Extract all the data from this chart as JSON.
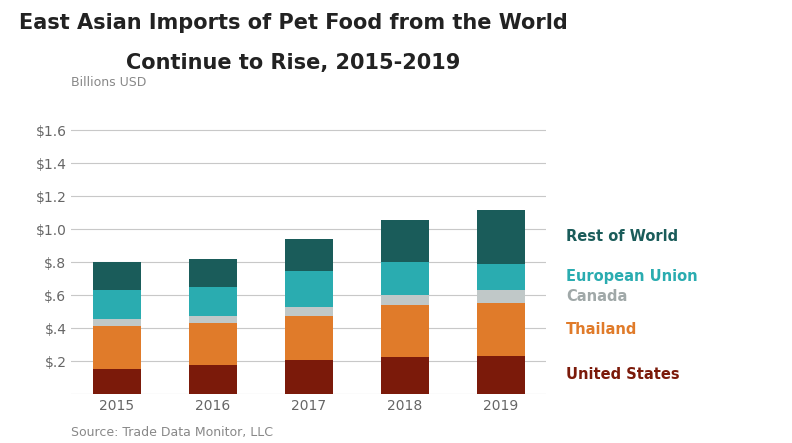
{
  "title_line1": "East Asian Imports of Pet Food from the World",
  "title_line2": "Continue to Rise, 2015-2019",
  "ylabel_top": "Billions USD",
  "source": "Source: Trade Data Monitor, LLC",
  "years": [
    "2015",
    "2016",
    "2017",
    "2018",
    "2019"
  ],
  "series": [
    {
      "name": "United States",
      "color": "#7B1A0A",
      "values": [
        0.155,
        0.175,
        0.205,
        0.225,
        0.235
      ]
    },
    {
      "name": "Thailand",
      "color": "#E07B2A",
      "values": [
        0.26,
        0.255,
        0.27,
        0.315,
        0.32
      ]
    },
    {
      "name": "Canada",
      "color": "#C0C8C8",
      "values": [
        0.04,
        0.045,
        0.055,
        0.065,
        0.08
      ]
    },
    {
      "name": "European Union",
      "color": "#2AACB0",
      "values": [
        0.175,
        0.175,
        0.22,
        0.2,
        0.155
      ]
    },
    {
      "name": "Rest of World",
      "color": "#1A5C5A",
      "values": [
        0.17,
        0.17,
        0.19,
        0.25,
        0.33
      ]
    }
  ],
  "ylim": [
    0,
    1.8
  ],
  "yticks": [
    0.0,
    0.2,
    0.4,
    0.6,
    0.8,
    1.0,
    1.2,
    1.4,
    1.6
  ],
  "ytick_labels": [
    "",
    "$.2",
    "$.4",
    "$.6",
    "$.8",
    "$1.0",
    "$1.2",
    "$1.4",
    "$1.6"
  ],
  "background_color": "#FFFFFF",
  "grid_color": "#C8C8C8",
  "title_fontsize": 15,
  "axis_label_fontsize": 9,
  "tick_fontsize": 10,
  "legend_fontsize": 10.5,
  "source_fontsize": 9,
  "bar_width": 0.5,
  "legend_label_colors": {
    "Rest of World": "#1A5C5A",
    "European Union": "#2AACB0",
    "Canada": "#A0A8A8",
    "Thailand": "#E07B2A",
    "United States": "#7B1A0A"
  }
}
